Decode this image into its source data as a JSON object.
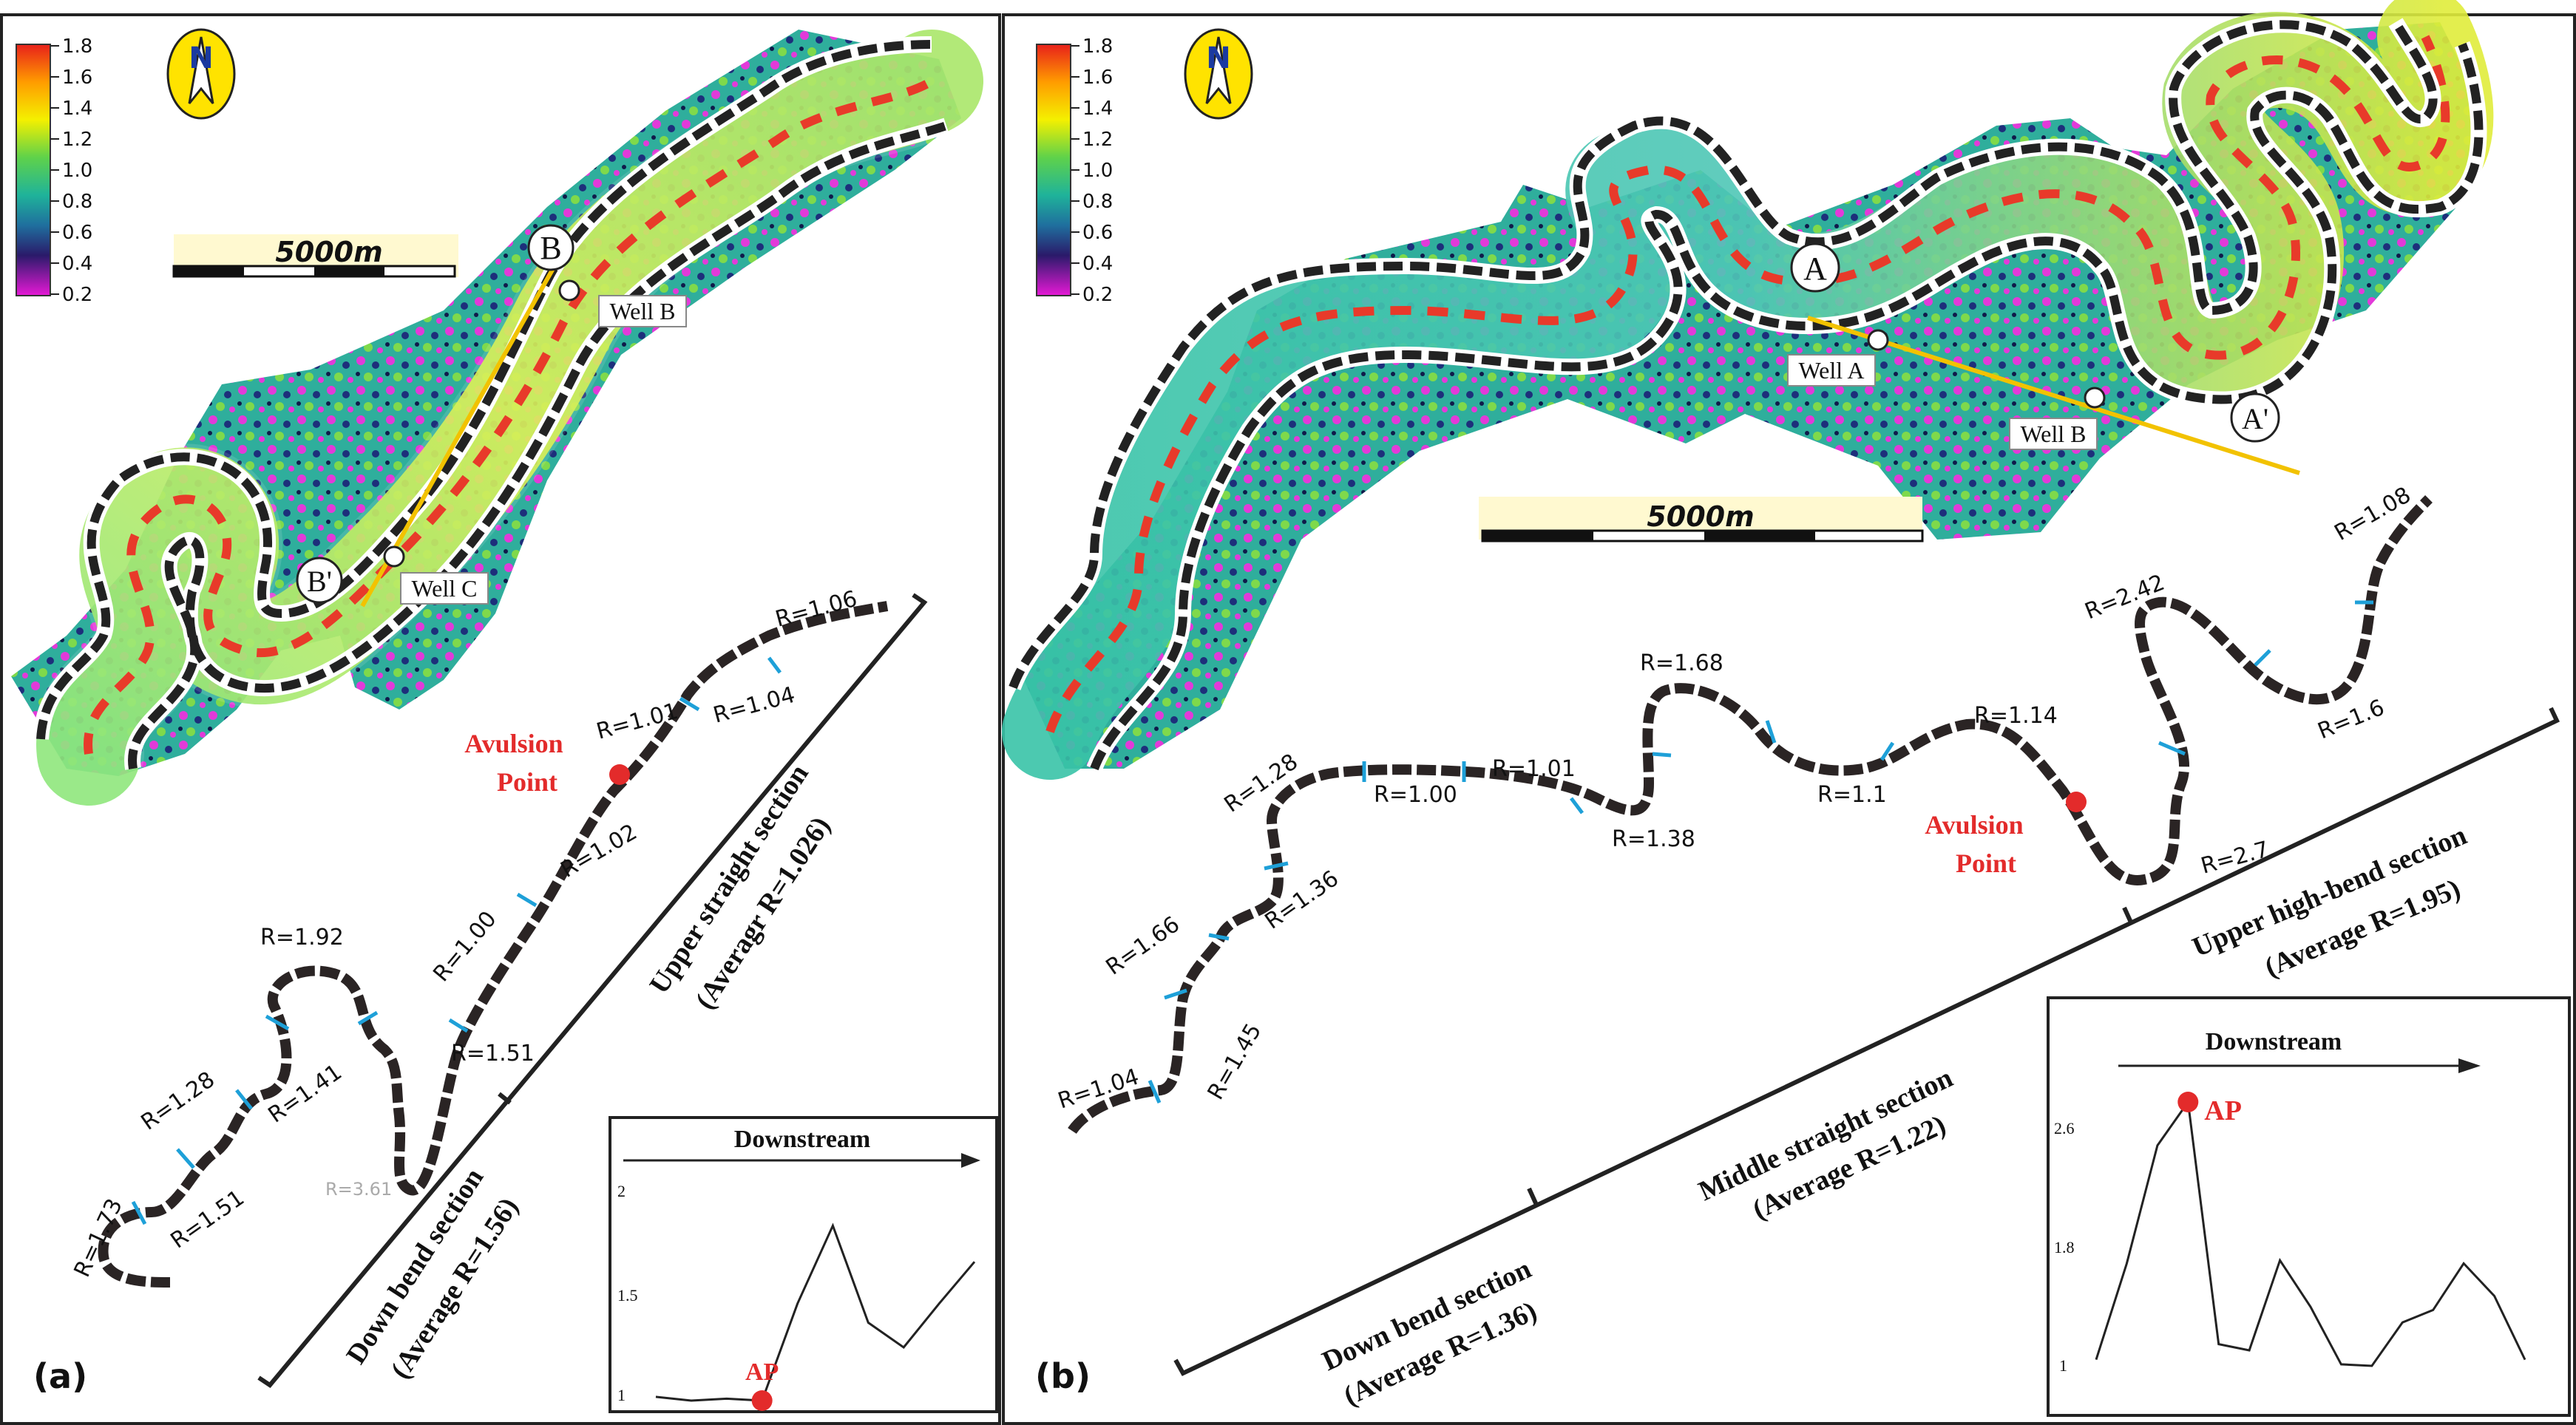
{
  "colorbar": {
    "ticks": [
      "1.8",
      "1.6",
      "1.4",
      "1.2",
      "1.0",
      "0.8",
      "0.6",
      "0.4",
      "0.2"
    ]
  },
  "panel_a": {
    "letter": "(a)",
    "scale_label": "5000m",
    "section_letter_start": "B",
    "section_letter_end": "B'",
    "well_b": "Well B",
    "well_c": "Well C",
    "avulsion_label_1": "Avulsion",
    "avulsion_label_2": "Point",
    "r_labels": [
      "R=1.06",
      "R=1.04",
      "R=1.01",
      "R=1.02",
      "R=1.00",
      "R=1.51",
      "R=1.92",
      "R=1.41",
      "R=1.28",
      "R=1.51",
      "R=1.73",
      "R=3.61"
    ],
    "upper_section_1": "Upper straight section",
    "upper_section_2": "(Averagr R=1.026)",
    "down_section_1": "Down bend section",
    "down_section_2": "(Average R=1.56)",
    "inset": {
      "title": "Downstream",
      "ap_label": "AP",
      "y_ticks": [
        "2",
        "1.5",
        "1"
      ]
    }
  },
  "panel_b": {
    "letter": "(b)",
    "scale_label": "5000m",
    "section_letter_start": "A",
    "section_letter_end": "A'",
    "well_a": "Well A",
    "well_b": "Well B",
    "avulsion_label_1": "Avulsion",
    "avulsion_label_2": "Point",
    "r_labels": [
      "R=1.08",
      "R=2.42",
      "R=1.6",
      "R=2.7",
      "R=1.14",
      "R=1.1",
      "R=1.68",
      "R=1.38",
      "R=1.01",
      "R=1.00",
      "R=1.28",
      "R=1.36",
      "R=1.66",
      "R=1.45",
      "R=1.04"
    ],
    "upper_section_1": "Upper high-bend section",
    "upper_section_2": "(Average R=1.95)",
    "middle_section_1": "Middle straight section",
    "middle_section_2": "(Average R=1.22)",
    "down_section_1": "Down bend section",
    "down_section_2": "(Average R=1.36)",
    "inset": {
      "title": "Downstream",
      "ap_label": "AP",
      "y_ticks": [
        "2.6",
        "1.8",
        "1"
      ]
    }
  },
  "chart_data": [
    {
      "type": "line",
      "title": "Downstream",
      "annotation": "AP",
      "y_ticks": [
        1,
        1.5,
        2
      ],
      "ylim": [
        1,
        2.1
      ],
      "series": [
        {
          "values": [
            1.02,
            1.0,
            1.01,
            1.0,
            1.51,
            1.92,
            1.41,
            1.28,
            1.51,
            1.73
          ]
        }
      ]
    },
    {
      "type": "line",
      "title": "Downstream",
      "annotation": "AP",
      "y_ticks": [
        1,
        1.8,
        2.6
      ],
      "ylim": [
        1,
        2.8
      ],
      "series": [
        {
          "values": [
            1.04,
            1.66,
            2.42,
            2.7,
            1.14,
            1.1,
            1.68,
            1.38,
            1.01,
            1.0,
            1.28,
            1.36,
            1.66,
            1.45,
            1.04
          ]
        }
      ]
    }
  ]
}
